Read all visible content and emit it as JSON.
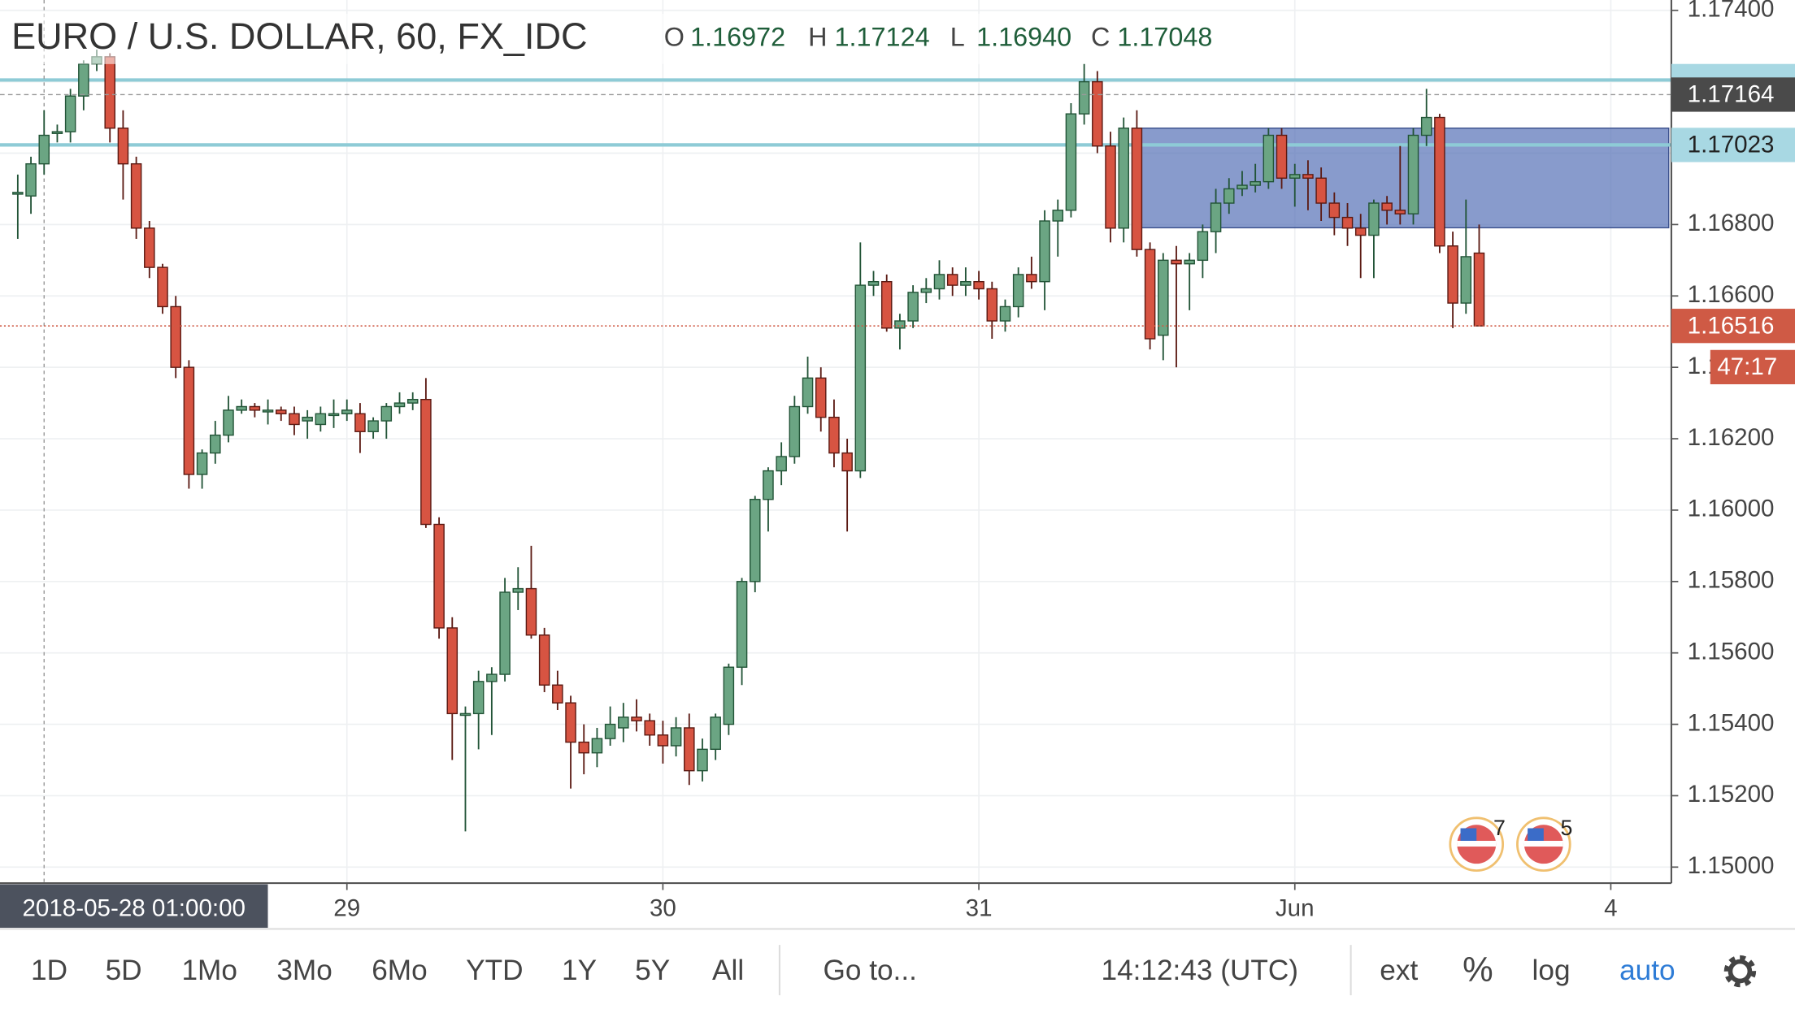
{
  "chart_data": {
    "type": "candlestick",
    "title": "EURO / U.S. DOLLAR, 60, FX_IDC",
    "ohlc_legend": [
      {
        "label": "O",
        "value": 1.16972
      },
      {
        "label": "H",
        "value": 1.17124
      },
      {
        "label": "L",
        "value": {
          "value": 1.1694,
          "label": "1.16940"
        }
      },
      {
        "label": "C",
        "value": 1.17048
      }
    ],
    "up_color": "#6ba583",
    "down_color": "#d75442",
    "up_border": "#225437",
    "down_border": "#5b1a13",
    "x": [
      -25,
      -24,
      -23,
      -22,
      -21,
      -20,
      -19,
      -18,
      -17,
      -16,
      -15,
      -14,
      -13,
      -12,
      -11,
      -10,
      -9,
      -8,
      -7,
      -6,
      -5,
      -4,
      -3,
      -2,
      -1,
      0,
      1,
      2,
      3,
      4,
      5,
      6,
      7,
      8,
      9,
      10,
      11,
      12,
      13,
      14,
      15,
      16,
      17,
      18,
      19,
      20,
      21,
      22,
      23,
      24,
      25,
      26,
      27,
      28,
      29,
      30,
      31,
      32,
      33,
      34,
      35,
      36,
      37,
      38,
      39,
      40,
      41,
      42,
      43,
      44,
      45,
      46,
      47,
      48,
      49,
      50,
      51,
      52,
      53,
      54,
      55,
      56,
      57,
      58,
      59,
      60,
      61,
      62,
      63,
      64,
      65,
      66,
      67,
      68,
      69,
      70,
      71,
      72,
      73,
      74,
      75,
      76,
      77,
      78,
      79,
      80,
      81,
      82,
      83,
      84,
      85,
      86
    ],
    "ohlc": [
      [
        1.1689,
        1.1694,
        1.1676,
        1.1689
      ],
      [
        1.1688,
        1.1699,
        1.1683,
        1.1697
      ],
      [
        1.1697,
        1.1712,
        1.1694,
        1.1705
      ],
      [
        1.1706,
        1.1708,
        1.1703,
        1.1706
      ],
      [
        1.1706,
        1.1718,
        1.1703,
        1.1716
      ],
      [
        1.1716,
        1.1726,
        1.1712,
        1.1725
      ],
      [
        1.1725,
        1.1729,
        1.1723,
        1.1727
      ],
      [
        1.1727,
        1.1728,
        1.1703,
        1.1707
      ],
      [
        1.1707,
        1.1712,
        1.1687,
        1.1697
      ],
      [
        1.1697,
        1.1699,
        1.1676,
        1.1679
      ],
      [
        1.1679,
        1.1681,
        1.1665,
        1.1668
      ],
      [
        1.1668,
        1.1669,
        1.1655,
        1.1657
      ],
      [
        1.1657,
        1.166,
        1.1637,
        1.164
      ],
      [
        1.164,
        1.1642,
        1.1606,
        1.161
      ],
      [
        1.161,
        1.1617,
        1.1606,
        1.1616
      ],
      [
        1.1616,
        1.1625,
        1.1613,
        1.1621
      ],
      [
        1.1621,
        1.1632,
        1.1619,
        1.1628
      ],
      [
        1.1628,
        1.1631,
        1.1627,
        1.1629
      ],
      [
        1.1629,
        1.163,
        1.1626,
        1.1628
      ],
      [
        1.1628,
        1.1631,
        1.1624,
        1.1628
      ],
      [
        1.1628,
        1.1629,
        1.1625,
        1.1627
      ],
      [
        1.1627,
        1.1629,
        1.1621,
        1.1624
      ],
      [
        1.1625,
        1.1628,
        1.162,
        1.1626
      ],
      [
        1.1624,
        1.1629,
        1.1622,
        1.1627
      ],
      [
        1.1627,
        1.1631,
        1.1623,
        1.1627
      ],
      [
        1.1627,
        1.1631,
        1.1625,
        1.1628
      ],
      [
        1.1627,
        1.163,
        1.1616,
        1.1622
      ],
      [
        1.1622,
        1.1626,
        1.162,
        1.1625
      ],
      [
        1.1625,
        1.163,
        1.162,
        1.1629
      ],
      [
        1.1629,
        1.1633,
        1.1627,
        1.163
      ],
      [
        1.163,
        1.1633,
        1.1628,
        1.1631
      ],
      [
        1.1631,
        1.1637,
        1.1595,
        1.1596
      ],
      [
        1.1596,
        1.1598,
        1.1564,
        1.1567
      ],
      [
        1.1567,
        1.157,
        1.153,
        1.1543
      ],
      [
        1.1543,
        1.1545,
        1.151,
        1.1543
      ],
      [
        1.1543,
        1.1555,
        1.1533,
        1.1552
      ],
      [
        1.1552,
        1.1556,
        1.1537,
        1.1554
      ],
      [
        1.1554,
        1.1581,
        1.1552,
        1.1577
      ],
      [
        1.1577,
        1.1584,
        1.1572,
        1.1578
      ],
      [
        1.1578,
        1.159,
        1.1564,
        1.1565
      ],
      [
        1.1565,
        1.1567,
        1.1549,
        1.1551
      ],
      [
        1.1551,
        1.1555,
        1.1544,
        1.1546
      ],
      [
        1.1546,
        1.1548,
        1.1522,
        1.1535
      ],
      [
        1.1535,
        1.154,
        1.1526,
        1.1532
      ],
      [
        1.1532,
        1.1539,
        1.1528,
        1.1536
      ],
      [
        1.1536,
        1.1545,
        1.1534,
        1.154
      ],
      [
        1.1539,
        1.1546,
        1.1535,
        1.1542
      ],
      [
        1.1542,
        1.1547,
        1.1538,
        1.1541
      ],
      [
        1.1541,
        1.1543,
        1.1534,
        1.1537
      ],
      [
        1.1537,
        1.1541,
        1.1529,
        1.1534
      ],
      [
        1.1534,
        1.1542,
        1.1531,
        1.1539
      ],
      [
        1.1539,
        1.1543,
        1.1523,
        1.1527
      ],
      [
        1.1527,
        1.1536,
        1.1524,
        1.1533
      ],
      [
        1.1533,
        1.1543,
        1.153,
        1.1542
      ],
      [
        1.154,
        1.1557,
        1.1537,
        1.1556
      ],
      [
        1.1556,
        1.1581,
        1.1551,
        1.158
      ],
      [
        1.158,
        1.1604,
        1.1577,
        1.1603
      ],
      [
        1.1603,
        1.1612,
        1.1594,
        1.1611
      ],
      [
        1.1611,
        1.1619,
        1.1607,
        1.1615
      ],
      [
        1.1615,
        1.1632,
        1.1613,
        1.1629
      ],
      [
        1.1629,
        1.1643,
        1.1627,
        1.1637
      ],
      [
        1.1637,
        1.164,
        1.1622,
        1.1626
      ],
      [
        1.1626,
        1.1631,
        1.1612,
        1.1616
      ],
      [
        1.1616,
        1.162,
        1.1594,
        1.1611
      ],
      [
        1.1611,
        1.1675,
        1.1609,
        1.1663
      ],
      [
        1.1663,
        1.1667,
        1.166,
        1.1664
      ],
      [
        1.1664,
        1.1666,
        1.165,
        1.1651
      ],
      [
        1.1651,
        1.1655,
        1.1645,
        1.1653
      ],
      [
        1.1653,
        1.1663,
        1.1651,
        1.1661
      ],
      [
        1.1661,
        1.1665,
        1.1658,
        1.1662
      ],
      [
        1.1662,
        1.167,
        1.1659,
        1.1666
      ],
      [
        1.1666,
        1.1668,
        1.166,
        1.1663
      ],
      [
        1.1663,
        1.1668,
        1.166,
        1.1664
      ],
      [
        1.1664,
        1.1667,
        1.1659,
        1.1662
      ],
      [
        1.1662,
        1.1664,
        1.1648,
        1.1653
      ],
      [
        1.1653,
        1.1659,
        1.165,
        1.1657
      ],
      [
        1.1657,
        1.1668,
        1.1654,
        1.1666
      ],
      [
        1.1666,
        1.1671,
        1.1662,
        1.1664
      ],
      [
        1.1664,
        1.1684,
        1.1656,
        1.1681
      ],
      [
        1.1681,
        1.1687,
        1.1671,
        1.1684
      ],
      [
        1.1684,
        1.1714,
        1.1682,
        1.1711
      ],
      [
        1.1711,
        1.1725,
        1.1708,
        1.172
      ],
      [
        1.172,
        1.1723,
        1.17,
        1.1702
      ],
      [
        1.1702,
        1.1706,
        1.1675,
        1.1679
      ],
      [
        1.1679,
        1.171,
        1.1675,
        1.1707
      ],
      [
        1.1707,
        1.1712,
        1.1671,
        1.1673
      ],
      [
        1.1673,
        1.1675,
        1.1645,
        1.1648
      ],
      [
        1.1649,
        1.1672,
        1.1642,
        1.167
      ],
      [
        1.167,
        1.1674,
        1.164,
        1.1669
      ],
      [
        1.1669,
        1.1672,
        1.1656,
        1.167
      ],
      [
        1.167,
        1.168,
        1.1665,
        1.1678
      ],
      [
        1.1678,
        1.169,
        1.1672,
        1.1686
      ],
      [
        1.1686,
        1.1693,
        1.1683,
        1.169
      ],
      [
        1.169,
        1.1695,
        1.1688,
        1.1691
      ],
      [
        1.1691,
        1.1697,
        1.1689,
        1.1692
      ],
      [
        1.1692,
        1.1707,
        1.169,
        1.1705
      ],
      [
        1.1705,
        1.1707,
        1.169,
        1.1693
      ],
      [
        1.1693,
        1.1697,
        1.1685,
        1.1694
      ],
      [
        1.1694,
        1.1698,
        1.1684,
        1.1693
      ],
      [
        1.1693,
        1.1696,
        1.1681,
        1.1686
      ],
      [
        1.1686,
        1.1689,
        1.1677,
        1.1682
      ],
      [
        1.1682,
        1.1686,
        1.1674,
        1.1679
      ],
      [
        1.1679,
        1.1683,
        1.1665,
        1.1677
      ],
      [
        1.1677,
        1.1687,
        1.1665,
        1.1686
      ],
      [
        1.1686,
        1.1688,
        1.168,
        1.1684
      ],
      [
        1.1684,
        1.1702,
        1.168,
        1.1683
      ],
      [
        1.1683,
        1.1707,
        1.168,
        1.1705
      ],
      [
        1.1705,
        1.1718,
        1.1702,
        1.171
      ],
      [
        1.171,
        1.1711,
        1.1672,
        1.1674
      ],
      [
        1.1674,
        1.1678,
        1.1651,
        1.1658
      ],
      [
        1.1658,
        1.1687,
        1.1655,
        1.1671
      ],
      [
        1.1672,
        1.168,
        1.1652,
        1.16516
      ]
    ],
    "xlim": [
      -26.35,
      100.6
    ],
    "xticks": [
      {
        "value": 0,
        "label": "29"
      },
      {
        "value": 24,
        "label": "30"
      },
      {
        "value": 48,
        "label": "31"
      },
      {
        "value": 72,
        "label": "Jun"
      },
      {
        "value": 96,
        "label": "4"
      }
    ],
    "ylim": [
      1.14955,
      1.17429
    ],
    "yticks": [
      {
        "value": 1.15,
        "label": "1.15000"
      },
      {
        "value": 1.152,
        "label": "1.15200"
      },
      {
        "value": 1.154,
        "label": "1.15400"
      },
      {
        "value": 1.156,
        "label": "1.15600"
      },
      {
        "value": 1.158,
        "label": "1.15800"
      },
      {
        "value": 1.16,
        "label": "1.16000"
      },
      {
        "value": 1.162,
        "label": "1.16200"
      },
      {
        "value": 1.164,
        "label": "1.16400"
      },
      {
        "value": 1.166,
        "label": "1.16600"
      },
      {
        "value": 1.168,
        "label": "1.16800"
      },
      {
        "value": 1.17,
        "label": "1.17000"
      },
      {
        "value": 1.172,
        "label": "1.17200"
      },
      {
        "value": 1.174,
        "label": "1.17400"
      }
    ],
    "grid": true,
    "crosshair": {
      "x": -23,
      "label": "2018-05-28 01:00:00"
    },
    "hlines": [
      {
        "value": 1.17205,
        "color": "#8ecbd6"
      },
      {
        "value": 1.17023,
        "color": "#8ecbd6"
      }
    ],
    "price_labels": [
      {
        "value": 1.17164,
        "color": "#4a4a4a",
        "line": "dashed"
      },
      {
        "value": 1.17023,
        "color": "#a8d8e3"
      },
      {
        "value": 1.16516,
        "color": "#cf5a45",
        "line": "dotted"
      }
    ],
    "zone": {
      "x": [
        60,
        100.4
      ],
      "y": [
        1.16791,
        1.1707
      ],
      "color": "#5a74b8"
    },
    "countdown": "47:17",
    "events": [
      {
        "x": 85.8,
        "count": 7
      },
      {
        "x": 90.9,
        "count": 5
      }
    ]
  },
  "toolbar": {
    "ranges": [
      "1D",
      "5D",
      "1Mo",
      "3Mo",
      "6Mo",
      "YTD",
      "1Y",
      "5Y",
      "All"
    ],
    "goto": "Go to...",
    "clock": "14:12:43 (UTC)",
    "options": [
      "ext",
      "%",
      "log",
      "auto"
    ]
  }
}
